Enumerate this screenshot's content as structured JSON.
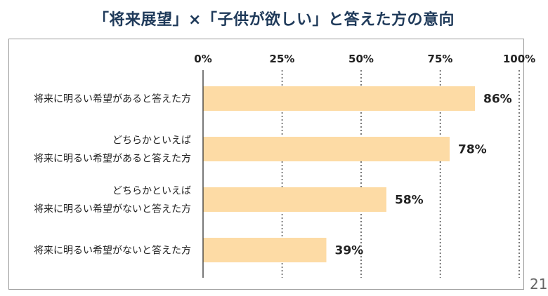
{
  "chart_data": {
    "type": "bar",
    "orientation": "horizontal",
    "title": "「将来展望」×「子供が欲しい」と答えた方の意向",
    "categories": [
      [
        "将来に明るい希望があると答えた方"
      ],
      [
        "どちらかといえば",
        "将来に明るい希望があると答えた方"
      ],
      [
        "どちらかといえば",
        "将来に明るい希望がないと答えた方"
      ],
      [
        "将来に明るい希望がないと答えた方"
      ]
    ],
    "values": [
      86,
      78,
      58,
      39
    ],
    "value_labels": [
      "86%",
      "78%",
      "58%",
      "39%"
    ],
    "xlim": [
      0,
      100
    ],
    "xticks": [
      0,
      25,
      50,
      75,
      100
    ],
    "xtick_labels": [
      "0%",
      "25%",
      "50%",
      "75%",
      "100%"
    ],
    "grid": "vertical dotted",
    "bar_color": "#fddba5",
    "axis_color": "#333333"
  },
  "page_number": "21"
}
